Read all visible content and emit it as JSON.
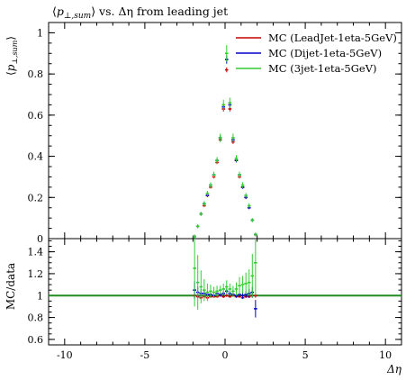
{
  "chart_data": [
    {
      "type": "scatter",
      "panel": "main",
      "title": "⟨p⊥,sum⟩ vs. Δη from leading jet",
      "title_parts": {
        "open": "⟨",
        "p": "p",
        "sub": "⊥,sum",
        "close": "⟩",
        "rest": " vs. Δη from leading jet"
      },
      "ylabel": "⟨p⊥,sum⟩",
      "ylabel_parts": {
        "open": "⟨",
        "p": "p",
        "sub": "⊥,sum",
        "close": "⟩"
      },
      "xlim": [
        -11,
        11
      ],
      "ylim": [
        0,
        1.05
      ],
      "yticks": [
        0,
        0.2,
        0.4,
        0.6,
        0.8,
        1
      ],
      "ytick_labels": [
        "0",
        "0.2",
        "0.4",
        "0.6",
        "0.8",
        "1"
      ],
      "legend_position": "top-right",
      "x": [
        -1.9,
        -1.7,
        -1.5,
        -1.3,
        -1.1,
        -0.9,
        -0.7,
        -0.5,
        -0.3,
        -0.1,
        0.1,
        0.3,
        0.5,
        0.7,
        0.9,
        1.1,
        1.3,
        1.5,
        1.7,
        1.9
      ],
      "series": [
        {
          "name": "MC (LeadJet-1eta-5GeV)",
          "color": "#cc0000",
          "values": [
            0.01,
            0.06,
            0.12,
            0.16,
            0.21,
            0.25,
            0.3,
            0.37,
            0.48,
            0.63,
            0.82,
            0.63,
            0.47,
            0.38,
            0.3,
            0.25,
            0.2,
            0.15,
            0.09,
            0.02
          ],
          "errors": [
            0.005,
            0.005,
            0.006,
            0.006,
            0.007,
            0.007,
            0.008,
            0.008,
            0.01,
            0.012,
            0.012,
            0.012,
            0.01,
            0.008,
            0.008,
            0.007,
            0.007,
            0.006,
            0.005,
            0.005
          ]
        },
        {
          "name": "MC (Dijet-1eta-5GeV)",
          "color": "#0000cc",
          "values": [
            0.01,
            0.06,
            0.12,
            0.17,
            0.21,
            0.26,
            0.31,
            0.38,
            0.49,
            0.64,
            0.87,
            0.65,
            0.48,
            0.38,
            0.31,
            0.25,
            0.2,
            0.15,
            0.09,
            0.02
          ],
          "errors": [
            0.006,
            0.006,
            0.007,
            0.007,
            0.008,
            0.008,
            0.009,
            0.01,
            0.012,
            0.015,
            0.02,
            0.015,
            0.012,
            0.01,
            0.009,
            0.008,
            0.008,
            0.007,
            0.006,
            0.006
          ]
        },
        {
          "name": "MC (3jet-1eta-5GeV)",
          "color": "#33cc33",
          "values": [
            0.01,
            0.06,
            0.12,
            0.17,
            0.22,
            0.26,
            0.31,
            0.38,
            0.49,
            0.65,
            0.9,
            0.66,
            0.49,
            0.39,
            0.31,
            0.26,
            0.21,
            0.16,
            0.09,
            0.02
          ],
          "errors": [
            0.01,
            0.01,
            0.01,
            0.012,
            0.012,
            0.014,
            0.015,
            0.016,
            0.02,
            0.025,
            0.04,
            0.025,
            0.02,
            0.016,
            0.015,
            0.014,
            0.012,
            0.012,
            0.01,
            0.01
          ]
        }
      ]
    },
    {
      "type": "scatter",
      "panel": "ratio",
      "xlabel": "Δη",
      "ylabel": "MC/data",
      "xlim": [
        -11,
        11
      ],
      "ylim": [
        0.55,
        1.52
      ],
      "xticks": [
        -10,
        -5,
        0,
        5,
        10
      ],
      "xtick_labels": [
        "-10",
        "-5",
        "0",
        "5",
        "10"
      ],
      "yticks": [
        0.6,
        0.8,
        1,
        1.2,
        1.4
      ],
      "ytick_labels": [
        "0.6",
        "0.8",
        "1",
        "1.2",
        "1.4"
      ],
      "reference_line": 1,
      "reference_color": "#228b22",
      "x": [
        -1.9,
        -1.7,
        -1.5,
        -1.3,
        -1.1,
        -0.9,
        -0.7,
        -0.5,
        -0.3,
        -0.1,
        0.1,
        0.3,
        0.5,
        0.7,
        0.9,
        1.1,
        1.3,
        1.5,
        1.7,
        1.9
      ],
      "series": [
        {
          "name": "MC (LeadJet-1eta-5GeV)",
          "color": "#cc0000",
          "values": [
            1.0,
            0.99,
            0.98,
            0.99,
            0.98,
            0.99,
            0.99,
            0.99,
            1.0,
            0.99,
            1.0,
            0.99,
            1.0,
            0.99,
            0.99,
            0.98,
            0.99,
            0.99,
            1.0,
            1.0
          ],
          "errors": [
            0.02,
            0.015,
            0.012,
            0.01,
            0.01,
            0.01,
            0.01,
            0.01,
            0.01,
            0.012,
            0.012,
            0.01,
            0.01,
            0.01,
            0.01,
            0.01,
            0.01,
            0.012,
            0.015,
            0.02
          ]
        },
        {
          "name": "MC (Dijet-1eta-5GeV)",
          "color": "#0000cc",
          "values": [
            1.05,
            1.03,
            1.02,
            1.02,
            1.01,
            1.01,
            1.0,
            1.02,
            1.01,
            1.02,
            1.04,
            1.02,
            1.01,
            1.0,
            1.01,
            1.0,
            1.01,
            1.02,
            1.03,
            0.88
          ],
          "errors": [
            0.08,
            0.05,
            0.04,
            0.03,
            0.03,
            0.03,
            0.02,
            0.02,
            0.02,
            0.02,
            0.025,
            0.02,
            0.02,
            0.02,
            0.02,
            0.03,
            0.03,
            0.04,
            0.05,
            0.08
          ]
        },
        {
          "name": "MC (3jet-1eta-5GeV)",
          "color": "#33cc33",
          "values": [
            1.25,
            1.12,
            1.08,
            1.05,
            1.03,
            1.04,
            1.03,
            1.04,
            1.05,
            1.06,
            1.08,
            1.06,
            1.04,
            1.06,
            1.09,
            1.1,
            1.11,
            1.12,
            1.18,
            1.3
          ],
          "errors": [
            0.35,
            0.25,
            0.15,
            0.1,
            0.08,
            0.06,
            0.05,
            0.05,
            0.04,
            0.05,
            0.06,
            0.05,
            0.05,
            0.06,
            0.08,
            0.08,
            0.1,
            0.12,
            0.2,
            0.3
          ]
        }
      ]
    }
  ]
}
